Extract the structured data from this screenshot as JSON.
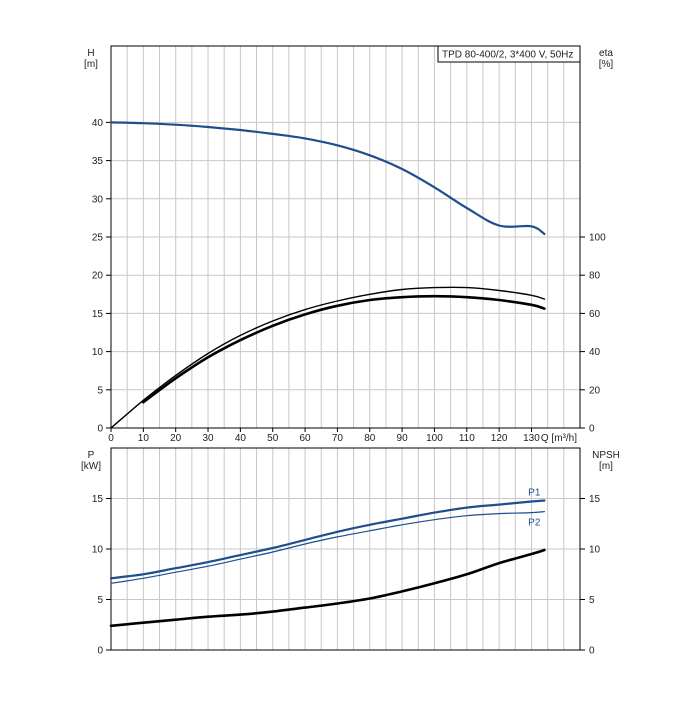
{
  "chart_data": [
    {
      "type": "line",
      "panel": "upper",
      "title": "TPD 80-400/2, 3*400 V, 50Hz",
      "xlabel": "Q [m³/h]",
      "xlim": [
        0,
        145
      ],
      "x_ticks": [
        "0",
        "10",
        "20",
        "30",
        "40",
        "50",
        "60",
        "70",
        "80",
        "90",
        "100",
        "110",
        "120",
        "130"
      ],
      "left_axis": {
        "label_top": "H",
        "label_unit": "[m]",
        "lim": [
          0,
          50
        ],
        "ticks": [
          "0",
          "5",
          "10",
          "15",
          "20",
          "25",
          "30",
          "35",
          "40"
        ]
      },
      "right_axis": {
        "label_top": "eta",
        "label_unit": "[%]",
        "lim": [
          0,
          200
        ],
        "ticks": [
          "0",
          "20",
          "40",
          "60",
          "80",
          "100"
        ]
      },
      "grid": true,
      "series": [
        {
          "axis": "left",
          "color": "#1f4e8c",
          "width": 2.2,
          "x": [
            0,
            10,
            20,
            30,
            40,
            50,
            60,
            70,
            80,
            90,
            100,
            110,
            120,
            130,
            134
          ],
          "y": [
            40,
            39.9,
            39.7,
            39.4,
            39,
            38.5,
            37.9,
            37,
            35.7,
            33.9,
            31.5,
            28.8,
            26.5,
            26.4,
            25.4
          ]
        },
        {
          "axis": "right",
          "color": "#000000",
          "width": 1.4,
          "x": [
            0,
            10,
            20,
            30,
            40,
            50,
            60,
            70,
            80,
            90,
            100,
            110,
            120,
            130,
            134
          ],
          "y": [
            0,
            14.5,
            27.5,
            39,
            48.5,
            56,
            62,
            66.5,
            70,
            72.5,
            73.5,
            73.5,
            72,
            69.5,
            67.5
          ]
        },
        {
          "axis": "right",
          "color": "#000000",
          "width": 2.6,
          "x": [
            10,
            20,
            30,
            40,
            50,
            60,
            70,
            80,
            90,
            100,
            110,
            120,
            130,
            134
          ],
          "y": [
            13.5,
            26,
            37,
            46,
            53.5,
            59.5,
            64,
            67,
            68.5,
            69,
            68.5,
            67,
            64.5,
            62.5
          ]
        }
      ]
    },
    {
      "type": "line",
      "panel": "lower",
      "xlim": [
        0,
        145
      ],
      "left_axis": {
        "label_top": "P",
        "label_unit": "[kW]",
        "lim": [
          0,
          20
        ],
        "ticks": [
          "0",
          "5",
          "10",
          "15"
        ]
      },
      "right_axis": {
        "label_top": "NPSH",
        "label_unit": "[m]",
        "lim": [
          0,
          20
        ],
        "ticks": [
          "0",
          "5",
          "10",
          "15"
        ]
      },
      "grid": true,
      "series": [
        {
          "name": "P1",
          "axis": "left",
          "color": "#1f4e8c",
          "width": 2.2,
          "x": [
            0,
            10,
            20,
            30,
            40,
            50,
            60,
            70,
            80,
            90,
            100,
            110,
            120,
            130,
            134
          ],
          "y": [
            7.1,
            7.5,
            8.1,
            8.7,
            9.4,
            10.1,
            10.9,
            11.7,
            12.4,
            13,
            13.6,
            14.1,
            14.4,
            14.7,
            14.8
          ]
        },
        {
          "name": "P2",
          "axis": "left",
          "color": "#1f4e8c",
          "width": 1.2,
          "x": [
            0,
            10,
            20,
            30,
            40,
            50,
            60,
            70,
            80,
            90,
            100,
            110,
            120,
            130,
            134
          ],
          "y": [
            6.6,
            7.1,
            7.7,
            8.3,
            9,
            9.7,
            10.5,
            11.2,
            11.8,
            12.4,
            12.9,
            13.3,
            13.5,
            13.6,
            13.7
          ]
        },
        {
          "axis": "right",
          "color": "#000000",
          "width": 2.6,
          "x": [
            0,
            10,
            20,
            30,
            40,
            50,
            60,
            70,
            80,
            90,
            100,
            110,
            120,
            130,
            134
          ],
          "y": [
            2.4,
            2.7,
            3,
            3.3,
            3.5,
            3.8,
            4.2,
            4.6,
            5.1,
            5.8,
            6.6,
            7.5,
            8.6,
            9.5,
            9.9
          ]
        }
      ]
    }
  ]
}
